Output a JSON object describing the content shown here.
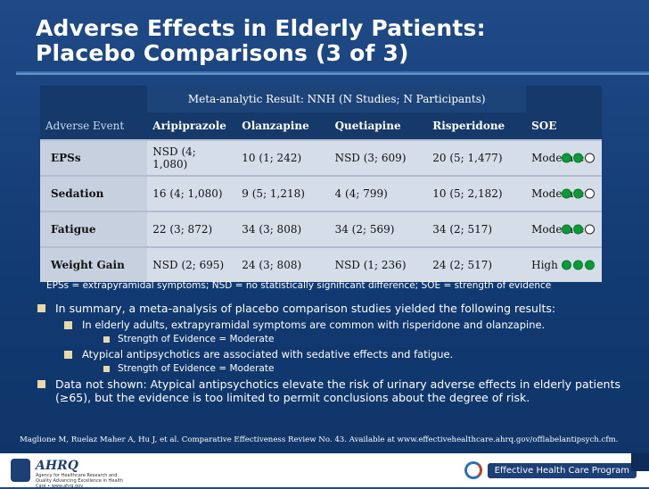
{
  "title": {
    "line1": "Adverse Effects in Elderly Patients:",
    "line2": "Placebo Comparisons (3 of 3)"
  },
  "table": {
    "meta_header": "Meta-analytic Result: NNH (N Studies; N Participants)",
    "columns": [
      "Adverse Event",
      "Aripiprazole",
      "Olanzapine",
      "Quetiapine",
      "Risperidone",
      "SOE"
    ],
    "rows": [
      {
        "event": "EPSs",
        "aripiprazole": "NSD (4; 1,080)",
        "olanzapine": "10 (1; 242)",
        "quetiapine": "NSD (3; 609)",
        "risperidone": "20 (5; 1,477)",
        "soe": "Moderate",
        "soe_level": 2
      },
      {
        "event": "Sedation",
        "aripiprazole": "16 (4; 1,080)",
        "olanzapine": "9 (5; 1,218)",
        "quetiapine": "4 (4; 799)",
        "risperidone": "10 (5; 2,182)",
        "soe": "Moderate",
        "soe_level": 2
      },
      {
        "event": "Fatigue",
        "aripiprazole": "22 (3; 872)",
        "olanzapine": "34 (3; 808)",
        "quetiapine": "34 (2; 569)",
        "risperidone": "34 (2; 517)",
        "soe": "Moderate",
        "soe_level": 2
      },
      {
        "event": "Weight Gain",
        "aripiprazole": "NSD (2; 695)",
        "olanzapine": "24 (3; 808)",
        "quetiapine": "NSD (1; 236)",
        "risperidone": "24 (2; 517)",
        "soe": "High",
        "soe_level": 3
      }
    ]
  },
  "abbreviations": "EPSs = extrapyramidal symptoms; NSD = no statistically significant difference; SOE = strength of evidence",
  "bullets": {
    "b1": "In summary, a meta-analysis of placebo comparison studies yielded the following results:",
    "b1a": "In elderly adults, extrapyramidal symptoms are common with risperidone and olanzapine.",
    "b1a_i": "Strength of Evidence = Moderate",
    "b1b": "Atypical antipsychotics are associated with sedative effects and fatigue.",
    "b1b_i": "Strength of Evidence = Moderate",
    "b2": "Data not shown: Atypical antipsychotics elevate the risk of urinary adverse effects in elderly patients (≥65), but the evidence is too limited to permit conclusions about the degree of risk."
  },
  "citation": "Maglione M, Ruelaz Maher A, Hu J, et al. Comparative Effectiveness Review No. 43. Available at www.effectivehealthcare.ahrq.gov/offlabelantipsych.cfm.",
  "footer": {
    "ahrq_mark": "AHRQ",
    "ahrq_sub": "Agency for Healthcare Research and Quality Advancing Excellence in Health Care • www.ahrq.gov",
    "ehc_label": "Effective Health Care Program"
  },
  "colors": {
    "background": "#123b73",
    "table_row": "#d5dde9",
    "dot_filled": "#0a9a36"
  }
}
